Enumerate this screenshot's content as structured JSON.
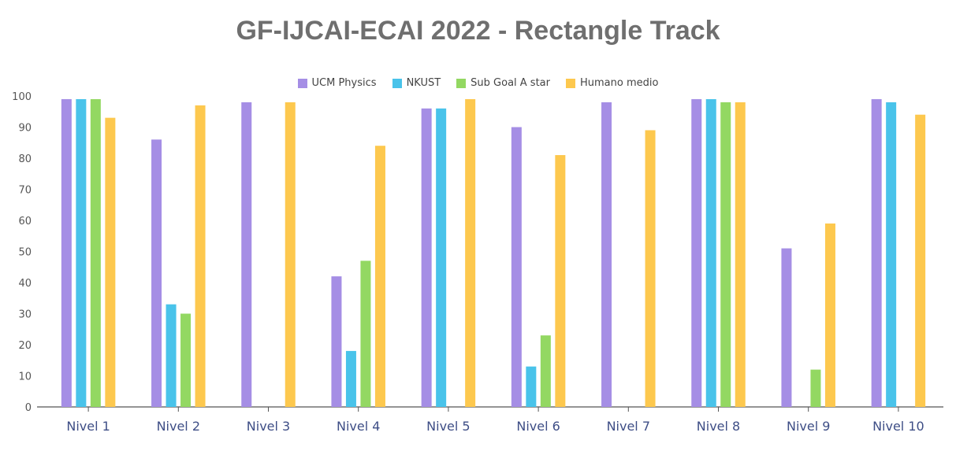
{
  "chart_data": {
    "type": "bar",
    "title": "GF-IJCAI-ECAI 2022 - Rectangle Track",
    "categories": [
      "Nivel 1",
      "Nivel 2",
      "Nivel 3",
      "Nivel 4",
      "Nivel 5",
      "Nivel 6",
      "Nivel 7",
      "Nivel 8",
      "Nivel 9",
      "Nivel 10"
    ],
    "series": [
      {
        "name": "UCM Physics",
        "color": "#a58ee5",
        "values": [
          99,
          86,
          98,
          42,
          96,
          90,
          98,
          99,
          51,
          99
        ]
      },
      {
        "name": "NKUST",
        "color": "#49c3ea",
        "values": [
          99,
          33,
          0,
          18,
          96,
          13,
          0,
          99,
          0,
          98
        ]
      },
      {
        "name": "Sub Goal A star",
        "color": "#93d862",
        "values": [
          99,
          30,
          0,
          47,
          0,
          23,
          0,
          98,
          12,
          0
        ]
      },
      {
        "name": "Humano medio",
        "color": "#fdc84e",
        "values": [
          93,
          97,
          98,
          84,
          99,
          81,
          89,
          98,
          59,
          94
        ]
      }
    ],
    "ylim": [
      0,
      100
    ],
    "yticks": [
      0,
      10,
      20,
      30,
      40,
      50,
      60,
      70,
      80,
      90,
      100
    ],
    "legend_position": "top-center",
    "grid": false
  }
}
